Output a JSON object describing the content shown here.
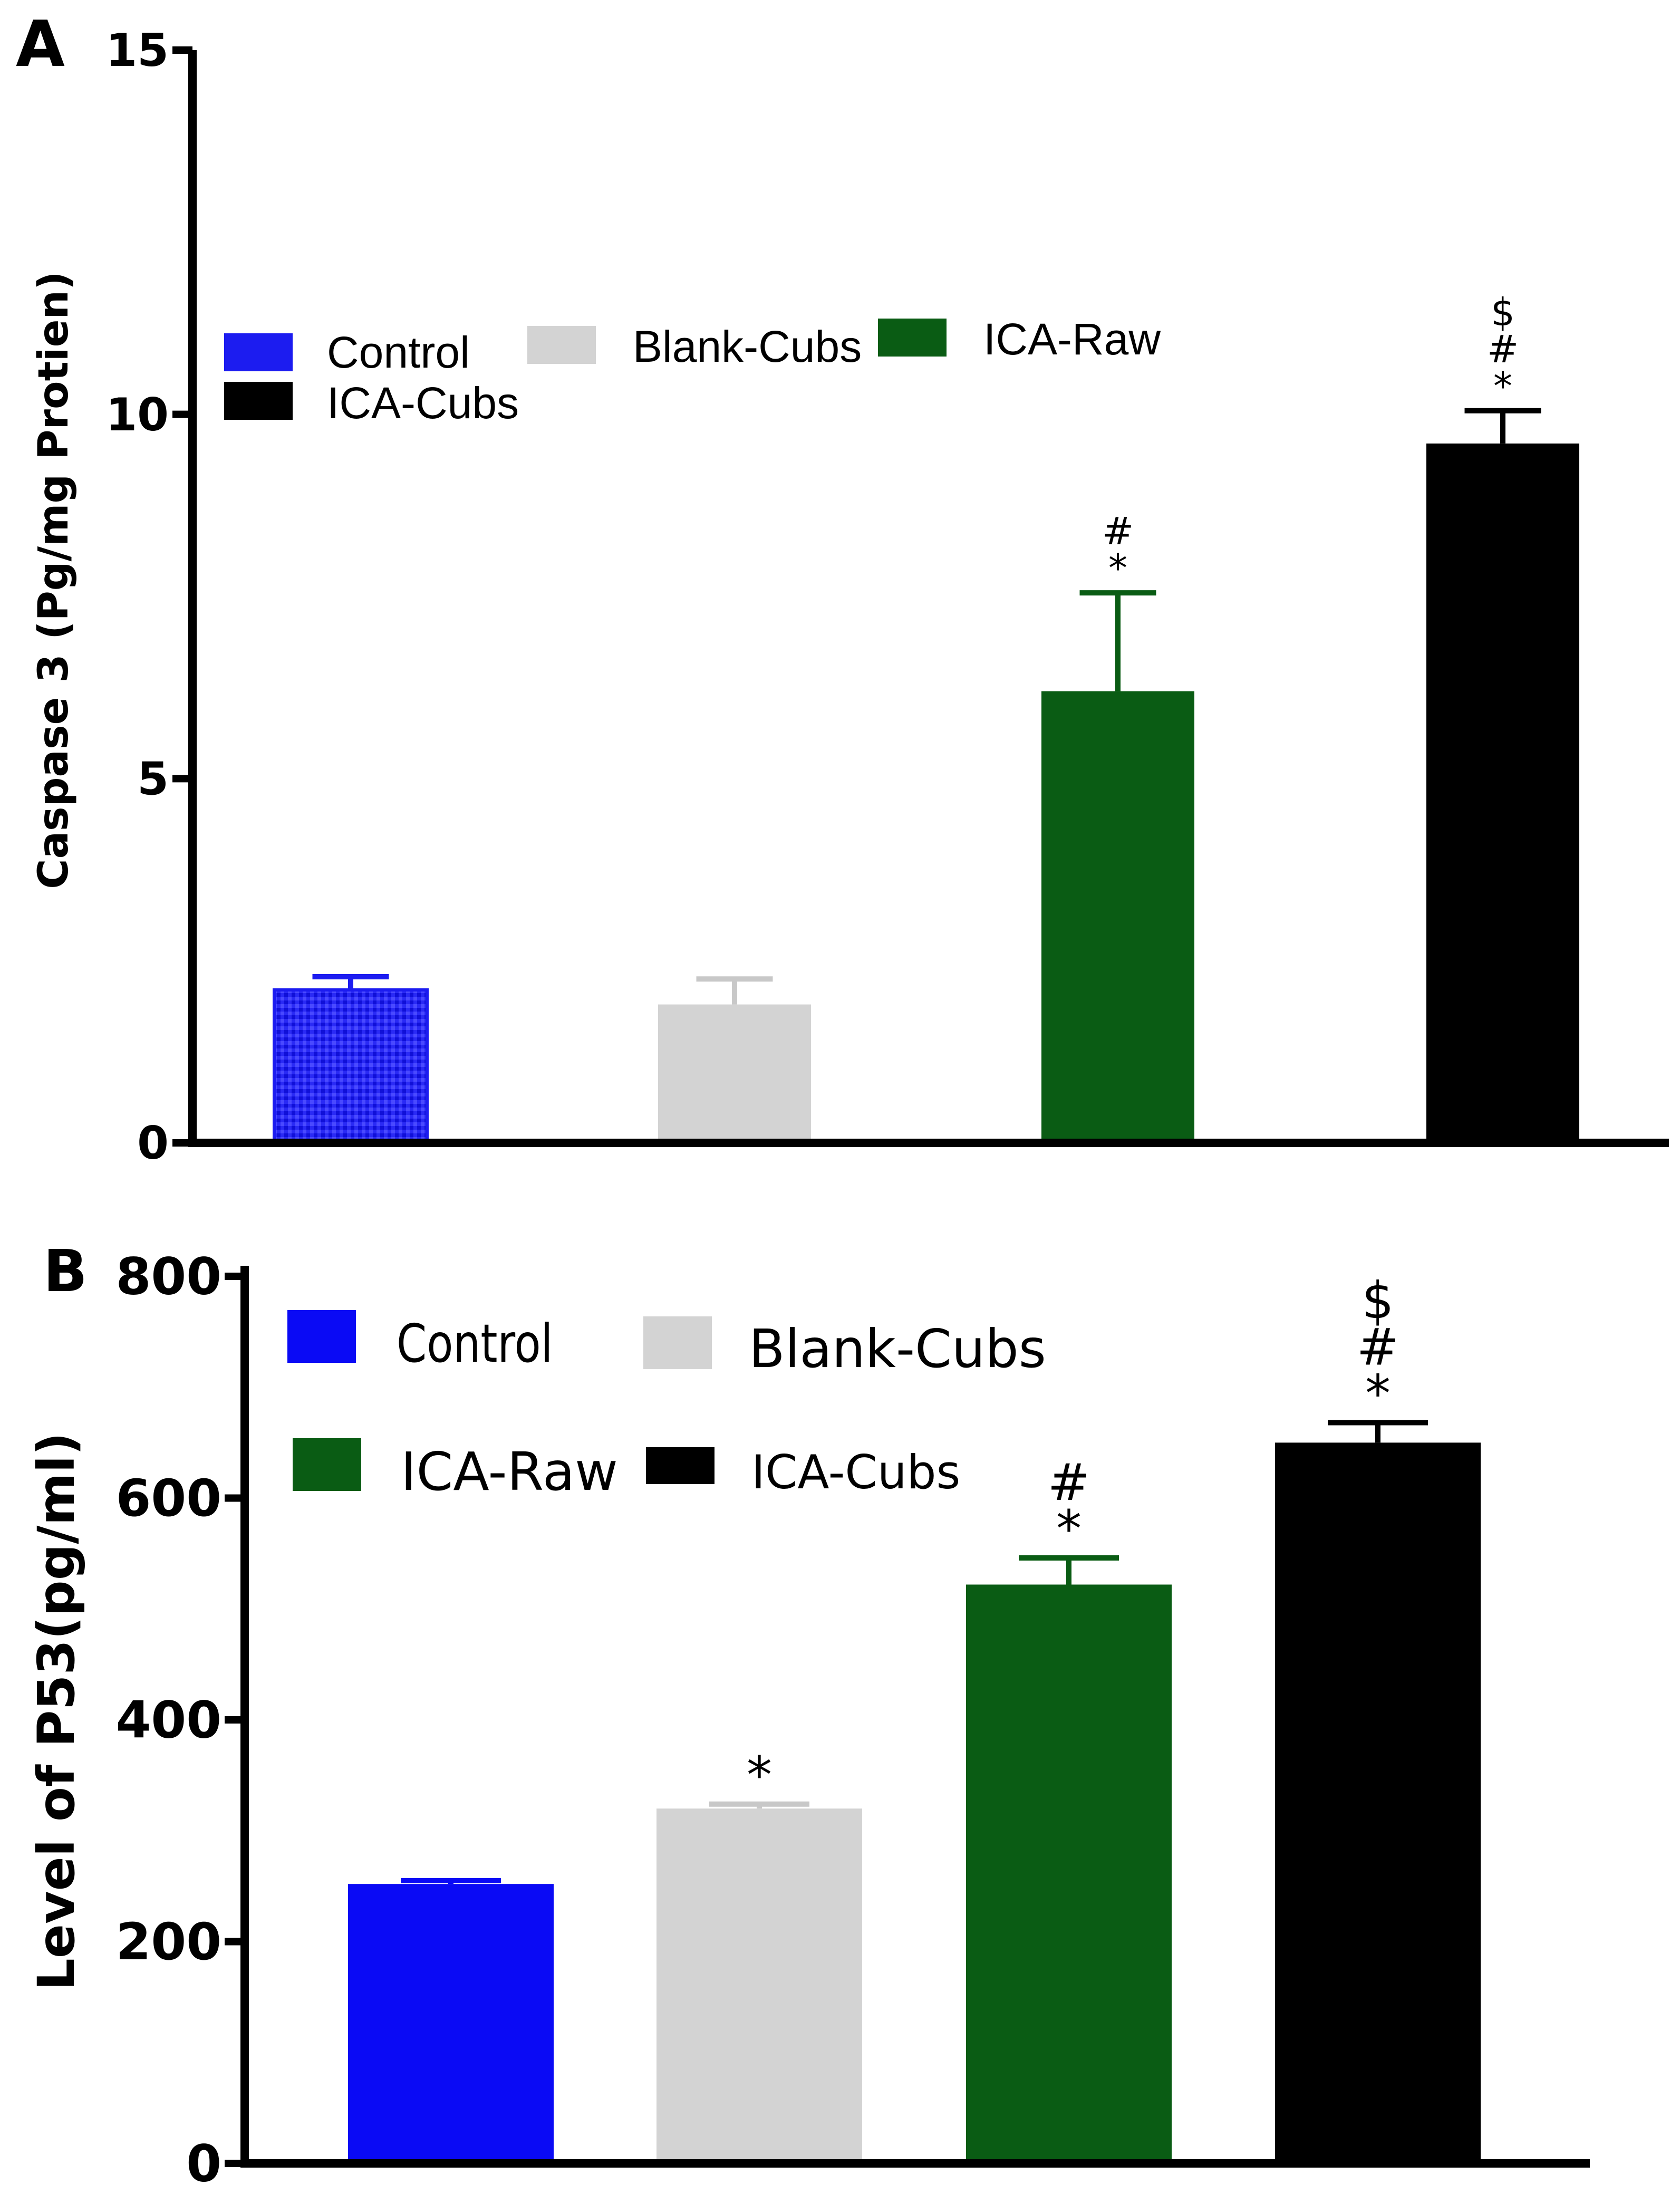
{
  "chart_data": [
    {
      "panel": "A",
      "type": "bar",
      "ylabel": "Caspase 3 (Pg/mg Protien)",
      "ylim": [
        0,
        15
      ],
      "yticks": [
        0,
        5,
        10,
        15
      ],
      "categories": [
        "Control",
        "Blank-Cubs",
        "ICA-Raw",
        "ICA-Cubs"
      ],
      "values": [
        2.1,
        1.9,
        6.2,
        9.6
      ],
      "errors": [
        0.18,
        0.35,
        1.35,
        0.45
      ],
      "annotations": [
        "",
        "",
        "#\n*",
        "$\n#\n*"
      ],
      "colors": [
        "#1c1cf0",
        "#d3d3d3",
        "#0a5c14",
        "#000000"
      ],
      "legend": [
        "Control",
        "Blank-Cubs",
        "ICA-Raw",
        "ICA-Cubs"
      ]
    },
    {
      "panel": "B",
      "type": "bar",
      "ylabel": "Level of P53(pg/ml)",
      "ylim": [
        0,
        800
      ],
      "yticks": [
        0,
        200,
        400,
        600,
        800
      ],
      "categories": [
        "Control",
        "Blank-Cubs",
        "ICA-Raw",
        "ICA-Cubs"
      ],
      "values": [
        252,
        320,
        522,
        650
      ],
      "errors": [
        3,
        4,
        24,
        18
      ],
      "annotations": [
        "",
        "*",
        "#\n*",
        "$\n#\n*"
      ],
      "colors": [
        "#0a0af5",
        "#d3d3d3",
        "#0a5c14",
        "#000000"
      ],
      "legend": [
        "Control",
        "Blank-Cubs",
        "ICA-Raw",
        "ICA-Cubs"
      ]
    }
  ]
}
